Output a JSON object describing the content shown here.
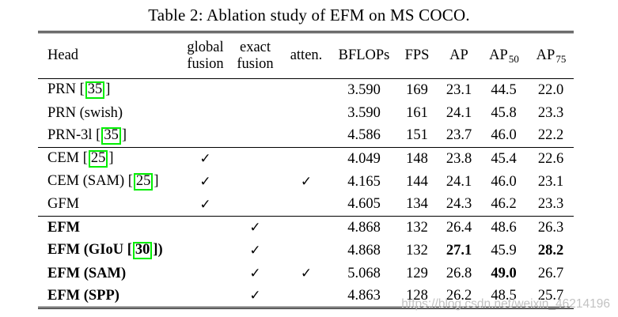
{
  "title": "Table 2: Ablation study of EFM on MS COCO.",
  "watermark": "https://blog.csdn.net/weixin_46214196",
  "check_glyph": "✓",
  "colors": {
    "text": "#000000",
    "background": "#ffffff",
    "citation_box": "#00ee00",
    "watermark": "#bcbcbc"
  },
  "table": {
    "columns": [
      {
        "label": "Head"
      },
      {
        "line1": "global",
        "line2": "fusion"
      },
      {
        "line1": "exact",
        "line2": "fusion"
      },
      {
        "label": "atten."
      },
      {
        "label": "BFLOPs"
      },
      {
        "label": "FPS"
      },
      {
        "label": "AP",
        "sub": ""
      },
      {
        "label": "AP",
        "sub": "50"
      },
      {
        "label": "AP",
        "sub": "75"
      }
    ],
    "groups": [
      {
        "rows": [
          {
            "head": [
              {
                "text": "PRN ["
              },
              {
                "text": "35",
                "cite": true
              },
              {
                "text": "]"
              }
            ],
            "bold_head": false,
            "checks": {
              "global_fusion": false,
              "exact_fusion": false,
              "atten": false
            },
            "values": {
              "bflops": "3.590",
              "fps": "169",
              "ap": "23.1",
              "ap50": "44.5",
              "ap75": "22.0"
            },
            "bold_values": []
          },
          {
            "head": [
              {
                "text": "PRN (swish)"
              }
            ],
            "bold_head": false,
            "checks": {
              "global_fusion": false,
              "exact_fusion": false,
              "atten": false
            },
            "values": {
              "bflops": "3.590",
              "fps": "161",
              "ap": "24.1",
              "ap50": "45.8",
              "ap75": "23.3"
            },
            "bold_values": []
          },
          {
            "head": [
              {
                "text": "PRN-3l ["
              },
              {
                "text": "35",
                "cite": true
              },
              {
                "text": "]"
              }
            ],
            "bold_head": false,
            "checks": {
              "global_fusion": false,
              "exact_fusion": false,
              "atten": false
            },
            "values": {
              "bflops": "4.586",
              "fps": "151",
              "ap": "23.7",
              "ap50": "46.0",
              "ap75": "22.2"
            },
            "bold_values": []
          }
        ]
      },
      {
        "rows": [
          {
            "head": [
              {
                "text": "CEM ["
              },
              {
                "text": "25",
                "cite": true
              },
              {
                "text": "]"
              }
            ],
            "bold_head": false,
            "checks": {
              "global_fusion": true,
              "exact_fusion": false,
              "atten": false
            },
            "values": {
              "bflops": "4.049",
              "fps": "148",
              "ap": "23.8",
              "ap50": "45.4",
              "ap75": "22.6"
            },
            "bold_values": []
          },
          {
            "head": [
              {
                "text": "CEM (SAM) ["
              },
              {
                "text": "25",
                "cite": true
              },
              {
                "text": "]"
              }
            ],
            "bold_head": false,
            "checks": {
              "global_fusion": true,
              "exact_fusion": false,
              "atten": true
            },
            "values": {
              "bflops": "4.165",
              "fps": "144",
              "ap": "24.1",
              "ap50": "46.0",
              "ap75": "23.1"
            },
            "bold_values": []
          },
          {
            "head": [
              {
                "text": "GFM"
              }
            ],
            "bold_head": false,
            "checks": {
              "global_fusion": true,
              "exact_fusion": false,
              "atten": false
            },
            "values": {
              "bflops": "4.605",
              "fps": "134",
              "ap": "24.3",
              "ap50": "46.2",
              "ap75": "23.3"
            },
            "bold_values": []
          }
        ]
      },
      {
        "rows": [
          {
            "head": [
              {
                "text": "EFM"
              }
            ],
            "bold_head": true,
            "checks": {
              "global_fusion": false,
              "exact_fusion": true,
              "atten": false
            },
            "values": {
              "bflops": "4.868",
              "fps": "132",
              "ap": "26.4",
              "ap50": "48.6",
              "ap75": "26.3"
            },
            "bold_values": []
          },
          {
            "head": [
              {
                "text": "EFM (GIoU ["
              },
              {
                "text": "30",
                "cite": true
              },
              {
                "text": "])"
              }
            ],
            "bold_head": true,
            "checks": {
              "global_fusion": false,
              "exact_fusion": true,
              "atten": false
            },
            "values": {
              "bflops": "4.868",
              "fps": "132",
              "ap": "27.1",
              "ap50": "45.9",
              "ap75": "28.2"
            },
            "bold_values": [
              "ap",
              "ap75"
            ]
          },
          {
            "head": [
              {
                "text": "EFM (SAM)"
              }
            ],
            "bold_head": true,
            "checks": {
              "global_fusion": false,
              "exact_fusion": true,
              "atten": true
            },
            "values": {
              "bflops": "5.068",
              "fps": "129",
              "ap": "26.8",
              "ap50": "49.0",
              "ap75": "26.7"
            },
            "bold_values": [
              "ap50"
            ]
          },
          {
            "head": [
              {
                "text": "EFM (SPP)"
              }
            ],
            "bold_head": true,
            "checks": {
              "global_fusion": false,
              "exact_fusion": true,
              "atten": false
            },
            "values": {
              "bflops": "4.863",
              "fps": "128",
              "ap": "26.2",
              "ap50": "48.5",
              "ap75": "25.7"
            },
            "bold_values": []
          }
        ]
      }
    ]
  }
}
